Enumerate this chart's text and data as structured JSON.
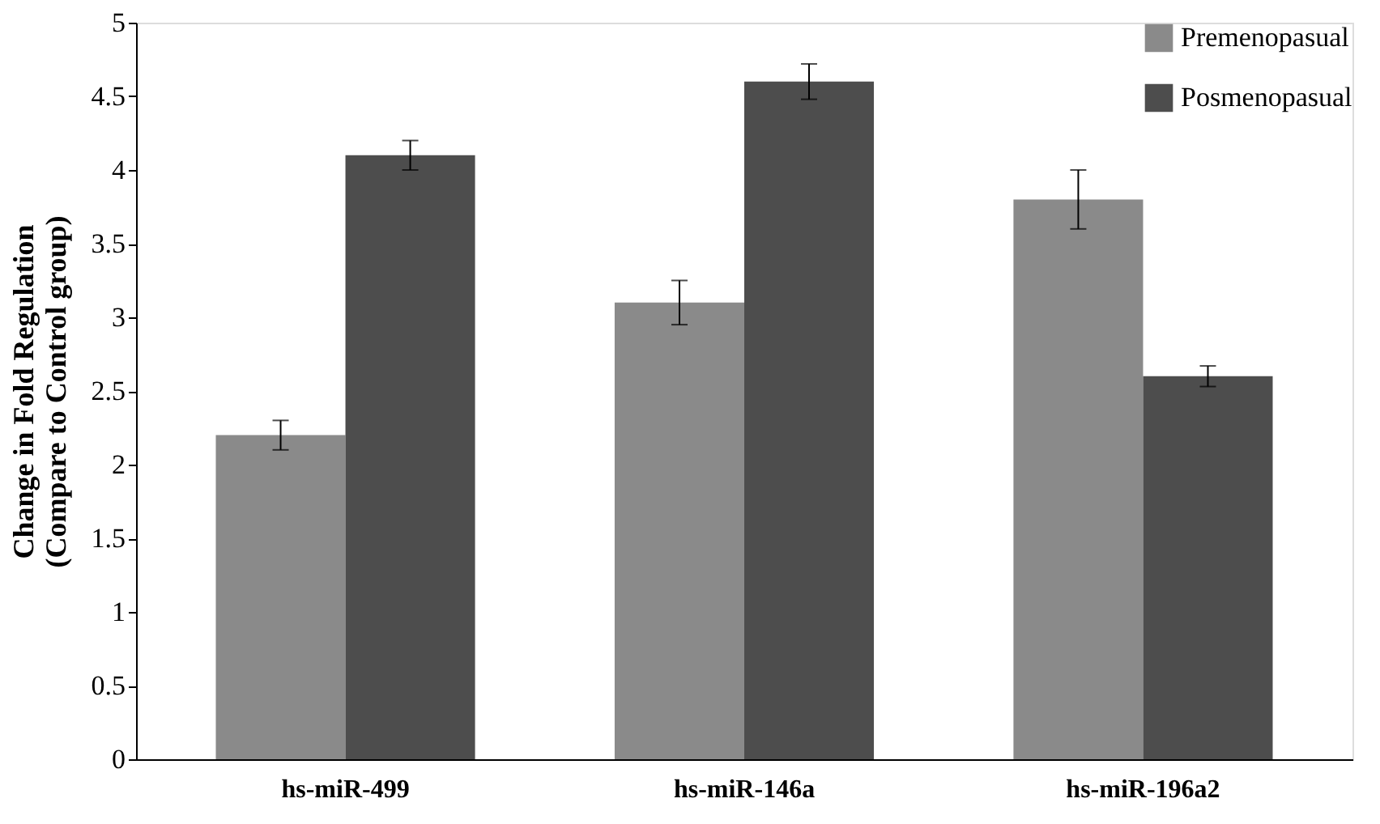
{
  "chart_data": {
    "type": "bar",
    "ylabel": "Change in Fold Regulation\n(Compare to Control group)",
    "categories": [
      "hs-miR-499",
      "hs-miR-146a",
      "hs-miR-196a2"
    ],
    "series": [
      {
        "name": "Premenopasual",
        "color": "#8a8a8a",
        "values": [
          2.2,
          3.1,
          3.8
        ],
        "errors": [
          0.1,
          0.15,
          0.2
        ]
      },
      {
        "name": "Posmenopasual",
        "color": "#4d4d4d",
        "values": [
          4.1,
          4.6,
          2.6
        ],
        "errors": [
          0.1,
          0.12,
          0.07
        ]
      }
    ],
    "ylim": [
      0,
      5
    ],
    "yticks": [
      0,
      0.5,
      1,
      1.5,
      2,
      2.5,
      3,
      3.5,
      4,
      4.5,
      5
    ],
    "grid": false,
    "legend": "top right"
  }
}
